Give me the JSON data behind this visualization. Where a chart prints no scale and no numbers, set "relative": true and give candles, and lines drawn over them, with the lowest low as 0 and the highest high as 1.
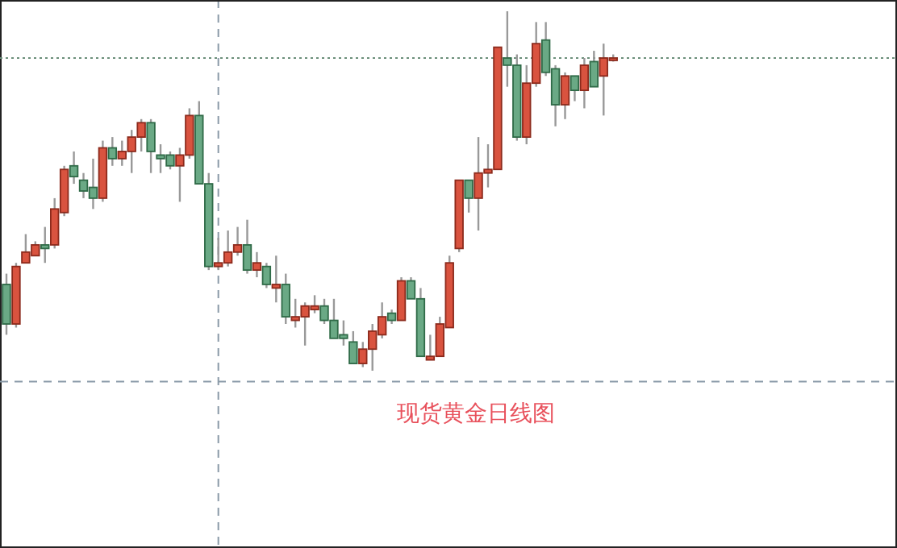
{
  "chart_data": {
    "type": "candlestick",
    "relative": true,
    "categories": [
      null,
      null,
      null,
      null,
      null,
      null,
      null,
      null,
      null,
      null,
      null,
      null,
      null,
      null,
      null,
      null,
      null,
      null,
      null,
      null,
      null,
      null,
      null,
      null,
      null,
      null,
      null,
      null,
      null,
      null,
      null,
      null,
      null,
      null,
      null,
      null,
      null,
      null,
      null,
      null,
      null,
      null,
      null,
      null,
      null,
      null,
      null,
      null,
      null,
      null,
      null,
      null,
      null,
      null,
      null,
      null,
      null,
      null,
      null,
      null,
      null,
      null,
      null,
      null
    ],
    "ohlc": [
      [
        0.24,
        0.27,
        0.1,
        0.13
      ],
      [
        0.13,
        0.3,
        0.12,
        0.29
      ],
      [
        0.3,
        0.38,
        0.3,
        0.33
      ],
      [
        0.32,
        0.36,
        0.32,
        0.35
      ],
      [
        0.35,
        0.4,
        0.3,
        0.34
      ],
      [
        0.35,
        0.48,
        0.34,
        0.45
      ],
      [
        0.44,
        0.57,
        0.43,
        0.56
      ],
      [
        0.57,
        0.61,
        0.52,
        0.54
      ],
      [
        0.53,
        0.55,
        0.48,
        0.5
      ],
      [
        0.51,
        0.59,
        0.45,
        0.48
      ],
      [
        0.48,
        0.64,
        0.47,
        0.62
      ],
      [
        0.62,
        0.65,
        0.57,
        0.59
      ],
      [
        0.59,
        0.64,
        0.57,
        0.61
      ],
      [
        0.61,
        0.67,
        0.55,
        0.65
      ],
      [
        0.65,
        0.7,
        0.61,
        0.69
      ],
      [
        0.69,
        0.7,
        0.55,
        0.61
      ],
      [
        0.6,
        0.63,
        0.55,
        0.59
      ],
      [
        0.6,
        0.61,
        0.56,
        0.57
      ],
      [
        0.57,
        0.62,
        0.47,
        0.6
      ],
      [
        0.6,
        0.73,
        0.59,
        0.71
      ],
      [
        0.71,
        0.75,
        0.52,
        0.52
      ],
      [
        0.52,
        0.55,
        0.28,
        0.29
      ],
      [
        0.29,
        0.37,
        0.28,
        0.3
      ],
      [
        0.3,
        0.39,
        0.29,
        0.33
      ],
      [
        0.33,
        0.4,
        0.32,
        0.35
      ],
      [
        0.35,
        0.42,
        0.27,
        0.28
      ],
      [
        0.28,
        0.33,
        0.26,
        0.3
      ],
      [
        0.29,
        0.3,
        0.23,
        0.24
      ],
      [
        0.23,
        0.32,
        0.19,
        0.24
      ],
      [
        0.24,
        0.27,
        0.13,
        0.15
      ],
      [
        0.14,
        0.2,
        0.12,
        0.15
      ],
      [
        0.15,
        0.19,
        0.07,
        0.18
      ],
      [
        0.17,
        0.21,
        0.16,
        0.18
      ],
      [
        0.18,
        0.2,
        0.13,
        0.14
      ],
      [
        0.14,
        0.2,
        0.09,
        0.09
      ],
      [
        0.1,
        0.14,
        0.07,
        0.09
      ],
      [
        0.08,
        0.11,
        0.02,
        0.02
      ],
      [
        0.02,
        0.08,
        0.01,
        0.06
      ],
      [
        0.06,
        0.13,
        0,
        0.11
      ],
      [
        0.1,
        0.19,
        0.09,
        0.15
      ],
      [
        0.16,
        0.17,
        0.13,
        0.14
      ],
      [
        0.14,
        0.26,
        0.14,
        0.25
      ],
      [
        0.25,
        0.26,
        0.2,
        0.2
      ],
      [
        0.2,
        0.23,
        0.04,
        0.04
      ],
      [
        0.03,
        0.1,
        0.03,
        0.04
      ],
      [
        0.04,
        0.15,
        0.04,
        0.13
      ],
      [
        0.12,
        0.32,
        0.12,
        0.3
      ],
      [
        0.34,
        0.53,
        0.33,
        0.53
      ],
      [
        0.53,
        0.53,
        0.44,
        0.48
      ],
      [
        0.48,
        0.65,
        0.39,
        0.55
      ],
      [
        0.55,
        0.63,
        0.51,
        0.56
      ],
      [
        0.56,
        0.9,
        0.56,
        0.9
      ],
      [
        0.87,
        1,
        0.79,
        0.85
      ],
      [
        0.85,
        0.88,
        0.64,
        0.65
      ],
      [
        0.65,
        0.85,
        0.63,
        0.8
      ],
      [
        0.8,
        0.97,
        0.79,
        0.91
      ],
      [
        0.92,
        0.97,
        0.82,
        0.83
      ],
      [
        0.84,
        0.85,
        0.68,
        0.74
      ],
      [
        0.74,
        0.83,
        0.7,
        0.82
      ],
      [
        0.82,
        0.82,
        0.75,
        0.78
      ],
      [
        0.78,
        0.87,
        0.73,
        0.85
      ],
      [
        0.86,
        0.89,
        0.79,
        0.79
      ],
      [
        0.82,
        0.91,
        0.71,
        0.87
      ],
      [
        0.87,
        0.88,
        0.86,
        0.87
      ]
    ],
    "ref_lines": [
      {
        "axis": "y",
        "value": 0.87,
        "color": "#6b8f7a",
        "line_style": "dotted"
      },
      {
        "axis": "y",
        "value": -0.03,
        "color": "#8a9aa8",
        "line_style": "dashed"
      }
    ],
    "annotations": [
      "现货黄金日线图"
    ]
  }
}
